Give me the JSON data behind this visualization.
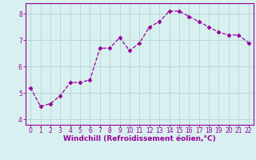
{
  "x": [
    0,
    1,
    2,
    3,
    4,
    5,
    6,
    7,
    8,
    9,
    10,
    11,
    12,
    13,
    14,
    15,
    16,
    17,
    18,
    19,
    20,
    21,
    22
  ],
  "y": [
    5.2,
    4.5,
    4.6,
    4.9,
    5.4,
    5.4,
    5.5,
    6.7,
    6.7,
    7.1,
    6.6,
    6.9,
    7.5,
    7.7,
    8.1,
    8.1,
    7.9,
    7.7,
    7.5,
    7.3,
    7.2,
    7.2,
    6.9
  ],
  "line_color": "#990099",
  "marker": "D",
  "marker_size": 2.5,
  "bg_color": "#d8f0f0",
  "grid_color": "#b0cece",
  "xlabel": "Windchill (Refroidissement éolien,°C)",
  "xlabel_color": "#990099",
  "ylim": [
    3.8,
    8.4
  ],
  "xlim": [
    -0.5,
    22.5
  ],
  "yticks": [
    4,
    5,
    6,
    7,
    8
  ],
  "xticks": [
    0,
    1,
    2,
    3,
    4,
    5,
    6,
    7,
    8,
    9,
    10,
    11,
    12,
    13,
    14,
    15,
    16,
    17,
    18,
    19,
    20,
    21,
    22
  ],
  "tick_color": "#990099",
  "axis_color": "#990099",
  "label_fontsize": 6.5,
  "tick_fontsize": 5.5
}
